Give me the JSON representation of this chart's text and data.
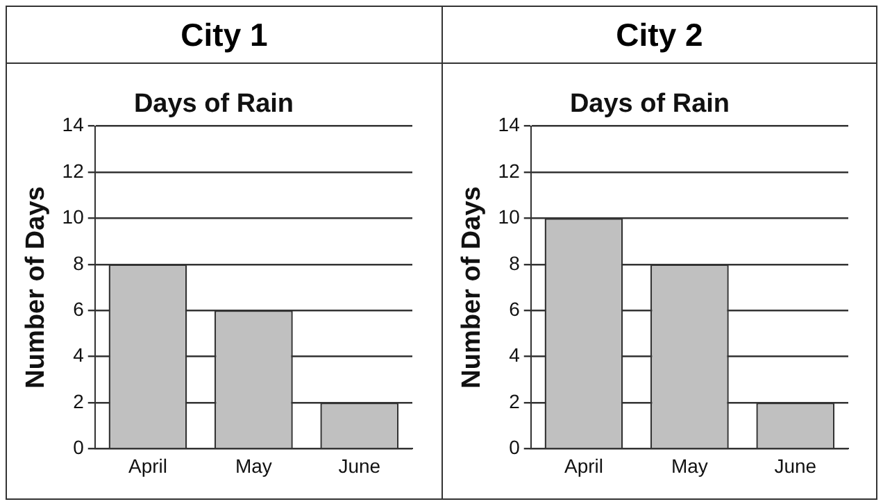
{
  "chart_data": [
    {
      "type": "bar",
      "title": "City 1",
      "subtitle": "Days of Rain",
      "ylabel": "Number of Days",
      "categories": [
        "April",
        "May",
        "June"
      ],
      "values": [
        8,
        6,
        2
      ],
      "color": "#c0c0c0",
      "ylim": [
        0,
        14
      ],
      "yticks": [
        0,
        2,
        4,
        6,
        8,
        10,
        12,
        14
      ],
      "grid": "y",
      "legend": false
    },
    {
      "type": "bar",
      "title": "City 2",
      "subtitle": "Days of Rain",
      "ylabel": "Number of Days",
      "categories": [
        "April",
        "May",
        "June"
      ],
      "values": [
        10,
        8,
        2
      ],
      "color": "#c0c0c0",
      "ylim": [
        0,
        14
      ],
      "yticks": [
        0,
        2,
        4,
        6,
        8,
        10,
        12,
        14
      ],
      "grid": "y",
      "legend": false
    }
  ]
}
